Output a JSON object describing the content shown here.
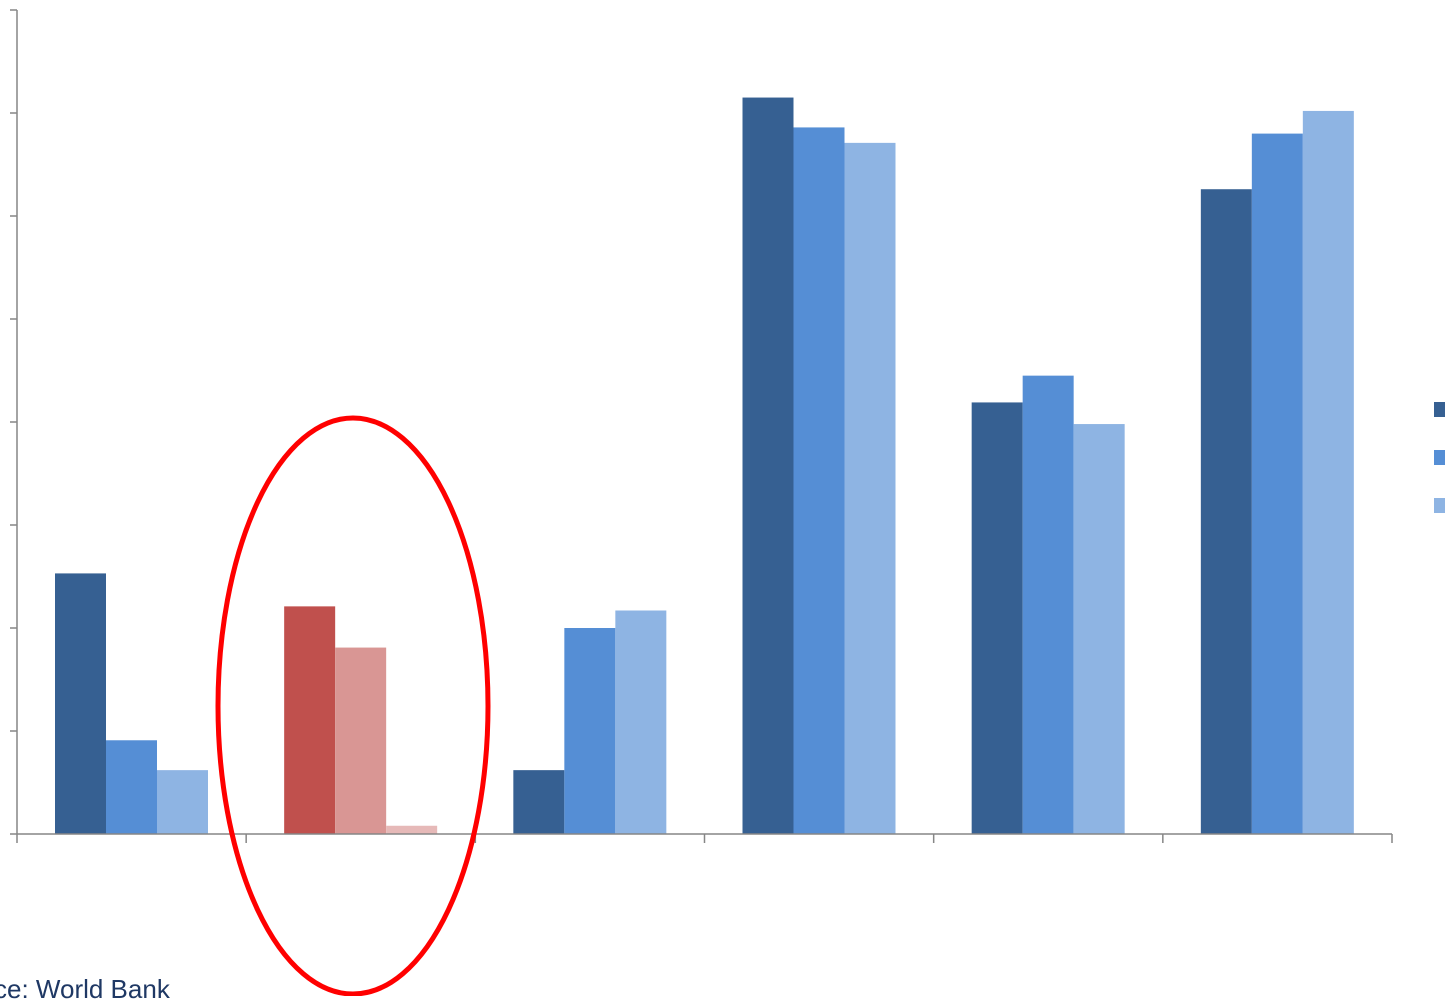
{
  "chart_data": {
    "type": "bar",
    "title": "",
    "xlabel": "",
    "ylabel": "",
    "categories": [
      "",
      "",
      "",
      "",
      "",
      ""
    ],
    "ylim": [
      0,
      8
    ],
    "grid": false,
    "legend": "right",
    "series": [
      {
        "color": "#366092",
        "values": [
          2.53,
          2.21,
          0.62,
          7.15,
          4.19,
          6.26
        ]
      },
      {
        "color": "#558ed5",
        "values": [
          0.91,
          1.81,
          2.0,
          6.86,
          4.45,
          6.8
        ]
      },
      {
        "color": "#8eb4e3",
        "values": [
          0.62,
          0.08,
          2.17,
          6.71,
          3.98,
          7.02
        ]
      }
    ],
    "highlight": {
      "category_index": 1,
      "colors": [
        "#c0504d",
        "#d99694",
        "#e6b9b8"
      ],
      "annotation": "red-ellipse"
    }
  },
  "footer": {
    "source": "ce: World Bank"
  }
}
